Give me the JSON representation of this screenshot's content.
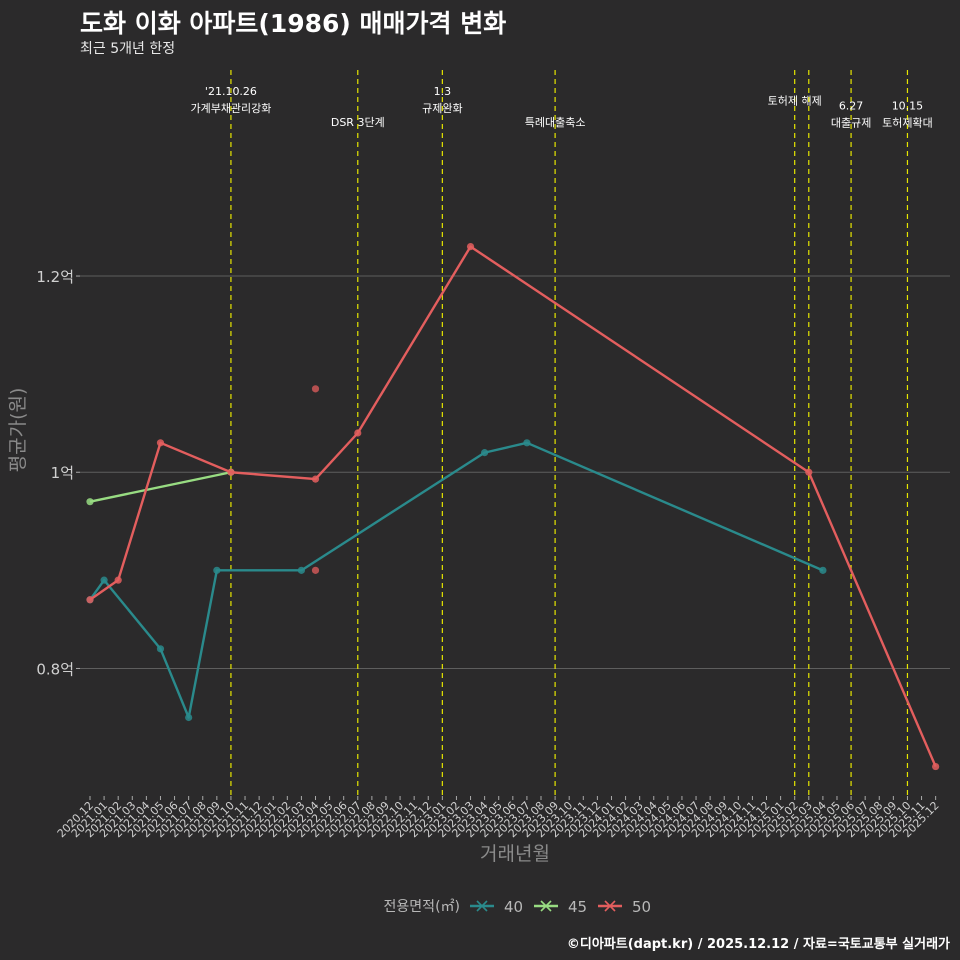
{
  "header": {
    "title": "도화 이화 아파트(1986) 매매가격 변화",
    "subtitle": "최근 5개년 한정"
  },
  "footer": {
    "caption": "©디아파트(dapt.kr) / 2025.12.12 / 자료=국토교통부 실거래가"
  },
  "chart_data": {
    "type": "line",
    "title": "도화 이화 아파트(1986) 매매가격 변화",
    "subtitle": "최근 5개년 한정",
    "xlabel": "거래년월",
    "ylabel": "평균가(원)",
    "ylim": [
      0.67,
      1.41
    ],
    "y_ticks": [
      {
        "value": 0.8,
        "label": "0.8억"
      },
      {
        "value": 1.0,
        "label": "1억"
      },
      {
        "value": 1.2,
        "label": "1.2억"
      }
    ],
    "categories": [
      "2020.12",
      "2021.01",
      "2021.02",
      "2021.03",
      "2021.04",
      "2021.05",
      "2021.06",
      "2021.07",
      "2021.08",
      "2021.09",
      "2021.10",
      "2021.11",
      "2021.12",
      "2022.01",
      "2022.02",
      "2022.03",
      "2022.04",
      "2022.05",
      "2022.06",
      "2022.07",
      "2022.08",
      "2022.09",
      "2022.10",
      "2022.11",
      "2022.12",
      "2023.01",
      "2023.02",
      "2023.03",
      "2023.04",
      "2023.05",
      "2023.06",
      "2023.07",
      "2023.08",
      "2023.09",
      "2023.10",
      "2023.11",
      "2023.12",
      "2024.01",
      "2024.02",
      "2024.03",
      "2024.04",
      "2024.05",
      "2024.06",
      "2024.07",
      "2024.08",
      "2024.09",
      "2024.10",
      "2024.11",
      "2024.12",
      "2025.01",
      "2025.02",
      "2025.03",
      "2025.04",
      "2025.05",
      "2025.06",
      "2025.07",
      "2025.08",
      "2025.09",
      "2025.10",
      "2025.11",
      "2025.12"
    ],
    "tick_labels": [
      "2020.12",
      "2021.01",
      "2021.02",
      "2021.03",
      "2021.04",
      "2021.05",
      "2021.06",
      "2021.07",
      "2021.08",
      "2021.09",
      "2021.10",
      "2021.11",
      "2021.12",
      "2022.01",
      "2022.02",
      "2022.03",
      "2022.04",
      "2022.05",
      "2022.06",
      "2022.07",
      "2022.08",
      "2022.09",
      "2022.10",
      "2022.11",
      "2022.12",
      "2023.01",
      "2023.02",
      "2023.03",
      "2023.04",
      "2023.05",
      "2023.06",
      "2023.07",
      "2023.08",
      "2023.09",
      "2023.10",
      "2023.11",
      "2023.12",
      "2024.01",
      "2024.02",
      "2024.03",
      "2024.04",
      "2024.05",
      "2024.06",
      "2024.07",
      "2024.08",
      "2024.09",
      "2024.10",
      "2024.11",
      "2024.12",
      "2025.01",
      "2025.02",
      "2025.03",
      "2025.04",
      "2025.05",
      "2025.06",
      "2025.07",
      "2025.08",
      "2025.09",
      "2025.10",
      "2025.11",
      "2025.12"
    ],
    "legend": {
      "title": "전용면적(㎡)",
      "position": "bottom"
    },
    "series": [
      {
        "name": "40",
        "color": "#2a8a8c",
        "points": [
          {
            "x": "2020.12",
            "y": 0.87
          },
          {
            "x": "2021.01",
            "y": 0.89
          },
          {
            "x": "2021.05",
            "y": 0.82
          },
          {
            "x": "2021.07",
            "y": 0.75
          },
          {
            "x": "2021.09",
            "y": 0.9
          },
          {
            "x": "2022.03",
            "y": 0.9
          },
          {
            "x": "2023.04",
            "y": 1.02
          },
          {
            "x": "2023.07",
            "y": 1.03
          },
          {
            "x": "2025.04",
            "y": 0.9
          }
        ],
        "extra_points": []
      },
      {
        "name": "45",
        "color": "#98dc82",
        "points": [
          {
            "x": "2020.12",
            "y": 0.97
          },
          {
            "x": "2021.10",
            "y": 1.0
          }
        ],
        "extra_points": []
      },
      {
        "name": "50",
        "color": "#e35e5e",
        "points": [
          {
            "x": "2020.12",
            "y": 0.87
          },
          {
            "x": "2021.02",
            "y": 0.89
          },
          {
            "x": "2021.05",
            "y": 1.03
          },
          {
            "x": "2021.10",
            "y": 1.0
          },
          {
            "x": "2022.04",
            "y": 0.993
          },
          {
            "x": "2022.07",
            "y": 1.04
          },
          {
            "x": "2023.03",
            "y": 1.23
          },
          {
            "x": "2025.03",
            "y": 1.0
          },
          {
            "x": "2025.12",
            "y": 0.7
          }
        ],
        "extra_points": [
          {
            "x": "2022.04",
            "y": 1.085
          },
          {
            "x": "2022.04",
            "y": 0.9
          }
        ]
      }
    ],
    "events": [
      {
        "x": "2021.10",
        "lines": [
          "'21.10.26",
          "가계부채관리강화"
        ],
        "row": 1
      },
      {
        "x": "2022.07",
        "lines": [
          "DSR 3단계"
        ],
        "row": 3
      },
      {
        "x": "2023.01",
        "lines": [
          "1.3",
          "규제완화"
        ],
        "row": 1
      },
      {
        "x": "2023.09",
        "lines": [
          "특례대출축소"
        ],
        "row": 3
      },
      {
        "x": "2025.02",
        "lines": [
          "토허제 해제"
        ],
        "row": 2
      },
      {
        "x": "2025.03",
        "lines": [],
        "row": 0
      },
      {
        "x": "2025.06",
        "lines": [
          "6.27",
          "대출규제"
        ],
        "row": 2.5
      },
      {
        "x": "2025.10",
        "lines": [
          "10.15",
          "토허제확대"
        ],
        "row": 2.5
      }
    ]
  }
}
